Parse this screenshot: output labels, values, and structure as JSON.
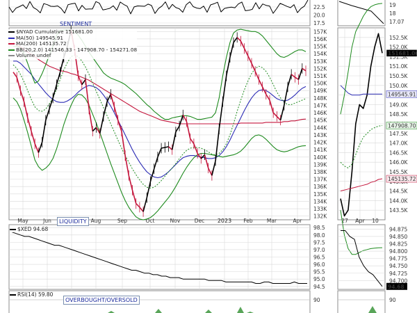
{
  "colors": {
    "price_up": "#000000",
    "price_down": "#c4163c",
    "ma50": "#2b2bb5",
    "ma200": "#c4163c",
    "bb": "#1d8a1d",
    "volume": "#2f8f2f",
    "grid": "#d9d9d9",
    "panel_border": "#8c8c8c"
  },
  "labels": {
    "sentiment": "SENTIMENT",
    "liquidity": "LIQUIDITY",
    "overbought": "OVERBOUGHT/OVERSOLD"
  },
  "legend": {
    "main": "$NYAD Cumulative 151681.00",
    "ma50": "MA(50) 149545.91",
    "ma200": "MA(200) 145135.72",
    "bb": "BB(20,2.0) 141546.33 - 147908.70 - 154271.08",
    "volume": "Volume undef",
    "xed": "$XED 94.68",
    "rsi": "RSI(14) 59.80"
  },
  "chart_data": [
    {
      "panel": "sentiment",
      "type": "line",
      "y_ticks_left": [
        "22.5",
        "20.0",
        "17.5"
      ],
      "y_ticks_right": [
        "19",
        "18",
        "17.07"
      ]
    },
    {
      "panel": "main",
      "type": "line",
      "title": "$NYAD Cumulative 151681.00",
      "x_ticks": [
        "May",
        "Jun",
        "Jul",
        "Aug",
        "Sep",
        "Oct",
        "Nov",
        "Dec",
        "2023",
        "Feb",
        "Mar",
        "Apr"
      ],
      "x_ticks_zoom": [
        "27",
        "Apr",
        "10"
      ],
      "y_ticks": [
        "157K",
        "156K",
        "155K",
        "154K",
        "153K",
        "152K",
        "151K",
        "150K",
        "149K",
        "148K",
        "147K",
        "146K",
        "145K",
        "144K",
        "143K",
        "142K",
        "141K",
        "140K",
        "139K",
        "138K",
        "137K",
        "136K",
        "135K",
        "134K",
        "133K",
        "132K"
      ],
      "y_ticks_zoom": [
        "152.5K",
        "152.0K",
        "151.5K",
        "151.0K",
        "150.5K",
        "150.0K",
        "149.5K",
        "149.0K",
        "148.5K",
        "148.0K",
        "147.5K",
        "147.0K",
        "146.5K",
        "146.0K",
        "145.5K",
        "145.0K",
        "144.5K",
        "144.0K",
        "143.5K"
      ],
      "ylim": [
        131500,
        157500
      ],
      "ylim_zoom": [
        143000,
        153000
      ],
      "last_value_label": "151681.00",
      "series": [
        {
          "name": "$NYAD Cumulative",
          "values": [
            151500,
            150800,
            149000,
            147500,
            145300,
            143500,
            141800,
            140600,
            142000,
            145000,
            146500,
            148000,
            149800,
            151500,
            153500,
            155000,
            157200,
            154500,
            151000,
            149800,
            150500,
            146500,
            143500,
            144000,
            143200,
            145500,
            147500,
            148500,
            146800,
            145000,
            143500,
            140200,
            137500,
            135500,
            133700,
            133200,
            132600,
            134500,
            136700,
            138400,
            140000,
            141200,
            141300,
            141400,
            141000,
            143400,
            144200,
            145700,
            144800,
            142500,
            141800,
            140500,
            139800,
            140300,
            138500,
            137500,
            139500,
            143800,
            147500,
            151000,
            153500,
            155500,
            156200,
            155700,
            154700,
            153700,
            152700,
            151600,
            150500,
            149500,
            148500,
            147700,
            146000,
            145500,
            145000,
            147000,
            149500,
            151200,
            150800,
            150500,
            152000,
            151681
          ]
        },
        {
          "name": "MA(50)",
          "values": [
            153000,
            153000,
            152700,
            152200,
            151700,
            151200,
            150500,
            149900,
            149300,
            148700,
            148200,
            147800,
            147500,
            147400,
            147400,
            147600,
            147900,
            148300,
            148800,
            149200,
            149500,
            149700,
            149600,
            149400,
            149000,
            148400,
            147700,
            146900,
            146000,
            145000,
            144000,
            143000,
            142000,
            141000,
            140100,
            139300,
            138600,
            138000,
            137600,
            137300,
            137200,
            137300,
            137600,
            138000,
            138500,
            139000,
            139500,
            139900,
            140100,
            140200,
            140200,
            140100,
            140000,
            139900,
            139800,
            139800,
            139900,
            140200,
            140700,
            141400,
            142300,
            143300,
            144300,
            145300,
            146300,
            147200,
            148000,
            148600,
            149000,
            149100,
            149000,
            148700,
            148300,
            147900,
            147700,
            147600,
            147700,
            148000,
            148400,
            148900,
            149300,
            149546
          ]
        },
        {
          "name": "MA(200)",
          "values": [
            155500,
            155200,
            154900,
            154600,
            154200,
            153900,
            153600,
            153200,
            152900,
            152600,
            152300,
            152100,
            151900,
            151700,
            151600,
            151500,
            151300,
            151200,
            151000,
            150800,
            150600,
            150400,
            150100,
            149800,
            149500,
            149200,
            148900,
            148600,
            148300,
            148000,
            147700,
            147400,
            147100,
            146800,
            146500,
            146200,
            146000,
            145800,
            145600,
            145400,
            145200,
            145000,
            144900,
            144800,
            144700,
            144600,
            144500,
            144500,
            144500,
            144500,
            144500,
            144500,
            144500,
            144500,
            144500,
            144500,
            144500,
            144500,
            144500,
            144500,
            144500,
            144500,
            144500,
            144600,
            144600,
            144600,
            144600,
            144600,
            144600,
            144600,
            144700,
            144700,
            144700,
            144700,
            144700,
            144800,
            144800,
            144900,
            144900,
            145000,
            145100,
            145136
          ]
        },
        {
          "name": "BB upper",
          "values": [
            155000,
            155000,
            154800,
            154000,
            152700,
            151300,
            150000,
            150300,
            151300,
            152500,
            153800,
            155000,
            156500,
            157200,
            157200,
            157200,
            157200,
            157000,
            156500,
            155800,
            155000,
            154200,
            153500,
            152800,
            152100,
            151400,
            151000,
            150700,
            150500,
            150300,
            150100,
            149800,
            149400,
            149000,
            148600,
            148100,
            147600,
            147100,
            146700,
            146200,
            145800,
            145400,
            145100,
            145100,
            145300,
            145400,
            145500,
            145600,
            145600,
            145500,
            145300,
            145100,
            145100,
            145200,
            145300,
            145400,
            146000,
            148000,
            151000,
            153500,
            155500,
            156800,
            157200,
            157300,
            157200,
            157100,
            157000,
            157000,
            156800,
            156400,
            155800,
            155200,
            154600,
            154000,
            153600,
            153500,
            153700,
            154000,
            154300,
            154500,
            154500,
            154271
          ]
        },
        {
          "name": "BB middle",
          "values": [
            152500,
            152000,
            151200,
            150200,
            149000,
            147800,
            146800,
            146300,
            146200,
            146500,
            147200,
            148000,
            149200,
            150500,
            151800,
            152800,
            153600,
            153800,
            153600,
            153000,
            152200,
            151200,
            150000,
            148900,
            147800,
            146700,
            145600,
            144500,
            143400,
            142300,
            141200,
            140200,
            139300,
            138400,
            137600,
            136900,
            136300,
            135900,
            135800,
            135900,
            136300,
            136800,
            137400,
            138000,
            138500,
            139100,
            139800,
            140400,
            140900,
            141200,
            141300,
            141300,
            141200,
            141000,
            140700,
            140400,
            140300,
            140500,
            141000,
            141800,
            143000,
            144500,
            146200,
            147700,
            149100,
            150300,
            151300,
            152000,
            152300,
            152100,
            151600,
            150800,
            149800,
            148800,
            148000,
            147400,
            147100,
            147100,
            147300,
            147500,
            147700,
            147909
          ]
        },
        {
          "name": "BB lower",
          "values": [
            148000,
            147500,
            146500,
            145000,
            143300,
            141500,
            139600,
            138700,
            138200,
            138500,
            139000,
            139800,
            141100,
            142700,
            144400,
            145800,
            147000,
            148000,
            148500,
            148400,
            147900,
            147000,
            145800,
            144600,
            143300,
            141900,
            140500,
            139100,
            137800,
            136500,
            135200,
            134100,
            133200,
            132500,
            131900,
            131600,
            131500,
            131600,
            131800,
            132200,
            132700,
            133300,
            133900,
            134500,
            135200,
            136000,
            136900,
            137800,
            138600,
            139300,
            139900,
            140300,
            140500,
            140500,
            140400,
            140300,
            140200,
            140100,
            140000,
            140100,
            140200,
            140300,
            140500,
            140800,
            141300,
            141900,
            142500,
            142900,
            143000,
            142800,
            142400,
            141900,
            141400,
            141000,
            140800,
            140700,
            140800,
            141000,
            141200,
            141400,
            141500,
            141546
          ]
        }
      ],
      "zoom_series": [
        {
          "name": "$NYAD Cumulative",
          "values": [
            144100,
            143200,
            143500,
            145500,
            148000,
            149000,
            148800,
            149500,
            151000,
            152000,
            152700,
            151681
          ]
        },
        {
          "name": "MA(50)",
          "values": [
            150000,
            149800,
            149600,
            149500,
            149500,
            149500,
            149550,
            149550,
            149550,
            149550,
            149546,
            149546
          ]
        },
        {
          "name": "MA(200)",
          "values": [
            144500,
            144550,
            144600,
            144650,
            144700,
            144750,
            144800,
            144850,
            144950,
            145000,
            145100,
            145136
          ]
        },
        {
          "name": "BB upper",
          "values": [
            148500,
            149500,
            150700,
            152000,
            152800,
            153200,
            153600,
            153900,
            154100,
            154200,
            154250,
            154271
          ]
        },
        {
          "name": "BB middle",
          "values": [
            146000,
            145800,
            145700,
            145900,
            146400,
            146900,
            147300,
            147500,
            147700,
            147800,
            147880,
            147909
          ]
        },
        {
          "name": "BB lower",
          "values": [
            143500,
            142200,
            141500,
            141200,
            141200,
            141300,
            141400,
            141450,
            141500,
            141520,
            141540,
            141546
          ]
        }
      ]
    },
    {
      "panel": "xed",
      "type": "line",
      "title": "$XED 94.68",
      "y_ticks": [
        "98.5",
        "98.0",
        "97.5",
        "97.0",
        "96.5",
        "96.0",
        "95.5",
        "95.0",
        "94.5"
      ],
      "y_ticks_zoom": [
        "94.875",
        "94.850",
        "94.825",
        "94.800",
        "94.775",
        "94.750",
        "94.725",
        "94.700"
      ],
      "ylim": [
        94.3,
        98.7
      ],
      "last_value_label": "94.68",
      "values": [
        98.2,
        98.1,
        98.0,
        97.9,
        97.9,
        97.8,
        97.7,
        97.6,
        97.5,
        97.4,
        97.3,
        97.3,
        97.2,
        97.1,
        97.0,
        96.9,
        96.8,
        96.7,
        96.6,
        96.5,
        96.4,
        96.3,
        96.2,
        96.1,
        96.0,
        95.9,
        95.8,
        95.7,
        95.6,
        95.6,
        95.5,
        95.4,
        95.4,
        95.3,
        95.3,
        95.2,
        95.2,
        95.1,
        95.1,
        95.1,
        95.0,
        95.0,
        95.0,
        95.0,
        95.0,
        95.0,
        94.9,
        94.9,
        94.9,
        94.9,
        94.8,
        94.8,
        94.8,
        94.8,
        94.8,
        94.8,
        94.8,
        94.7,
        94.7,
        94.8,
        94.8,
        94.7,
        94.7,
        94.7,
        94.7,
        94.7,
        94.8,
        94.7,
        94.7,
        94.7
      ],
      "zoom_values": [
        94.87,
        94.87,
        94.85,
        94.84,
        94.78,
        94.75,
        94.73,
        94.72,
        94.7,
        94.68
      ]
    },
    {
      "panel": "rsi",
      "type": "area",
      "title": "RSI(14) 59.80",
      "y_ticks": [
        "90"
      ],
      "y_ticks_zoom": [
        "90"
      ]
    }
  ]
}
